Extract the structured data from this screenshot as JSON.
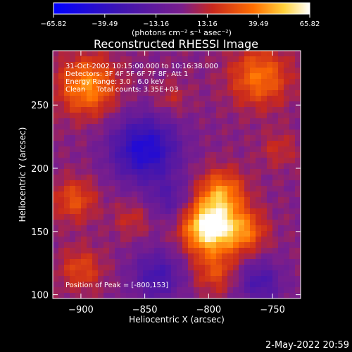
{
  "chart_data": {
    "type": "heatmap",
    "title": "Reconstructed RHESSI Image",
    "xlabel": "Heliocentric X (arcsec)",
    "ylabel": "Heliocentric Y (arcsec)",
    "xlim": [
      -922,
      -728
    ],
    "ylim": [
      97,
      293
    ],
    "x_ticks": [
      -900,
      -850,
      -800,
      -750
    ],
    "y_ticks": [
      100,
      150,
      200,
      250
    ],
    "x_tick_labels": [
      "−900",
      "−850",
      "−800",
      "−750"
    ],
    "y_tick_labels": [
      "100",
      "150",
      "200",
      "250"
    ],
    "colorbar": {
      "range": [
        -65.82,
        65.82
      ],
      "ticks": [
        -65.82,
        -39.49,
        -13.16,
        13.16,
        39.49,
        65.82
      ],
      "tick_labels": [
        "−65.82",
        "−39.49",
        "−13.16",
        "13.16",
        "39.49",
        "65.82"
      ],
      "label": "(photons cm⁻² s⁻¹ asec⁻²)"
    },
    "annotations": [
      "31-Oct-2002 10:15:00.000 to 10:16:38.000",
      "Detectors: 3F 4F 5F 6F 7F 8F, Att 1",
      "Energy Range: 3.0 - 6.0 keV",
      "Clean     Total counts: 3.35E+03"
    ],
    "peak_label": "Position of Peak = [-800,153]",
    "peak": [
      -800,
      153
    ],
    "sources": [
      {
        "x": -800,
        "y": 153,
        "amp": 65.82,
        "sigma": 14
      },
      {
        "x": -790,
        "y": 180,
        "amp": 38,
        "sigma": 13
      },
      {
        "x": -772,
        "y": 150,
        "amp": 32,
        "sigma": 12
      },
      {
        "x": -795,
        "y": 118,
        "amp": 22,
        "sigma": 12
      },
      {
        "x": -895,
        "y": 265,
        "amp": 40,
        "sigma": 16
      },
      {
        "x": -760,
        "y": 272,
        "amp": 34,
        "sigma": 16
      },
      {
        "x": -905,
        "y": 175,
        "amp": 25,
        "sigma": 12
      },
      {
        "x": -900,
        "y": 120,
        "amp": 22,
        "sigma": 12
      },
      {
        "x": -830,
        "y": 255,
        "amp": 12,
        "sigma": 10
      },
      {
        "x": -860,
        "y": 160,
        "amp": 14,
        "sigma": 10
      },
      {
        "x": -745,
        "y": 215,
        "amp": 14,
        "sigma": 10
      },
      {
        "x": -850,
        "y": 215,
        "amp": -50,
        "sigma": 18
      },
      {
        "x": -840,
        "y": 115,
        "amp": -30,
        "sigma": 14
      },
      {
        "x": -760,
        "y": 110,
        "amp": -28,
        "sigma": 12
      },
      {
        "x": -830,
        "y": 175,
        "amp": -20,
        "sigma": 12
      }
    ]
  },
  "footer": {
    "date": "2-May-2022 20:59"
  }
}
